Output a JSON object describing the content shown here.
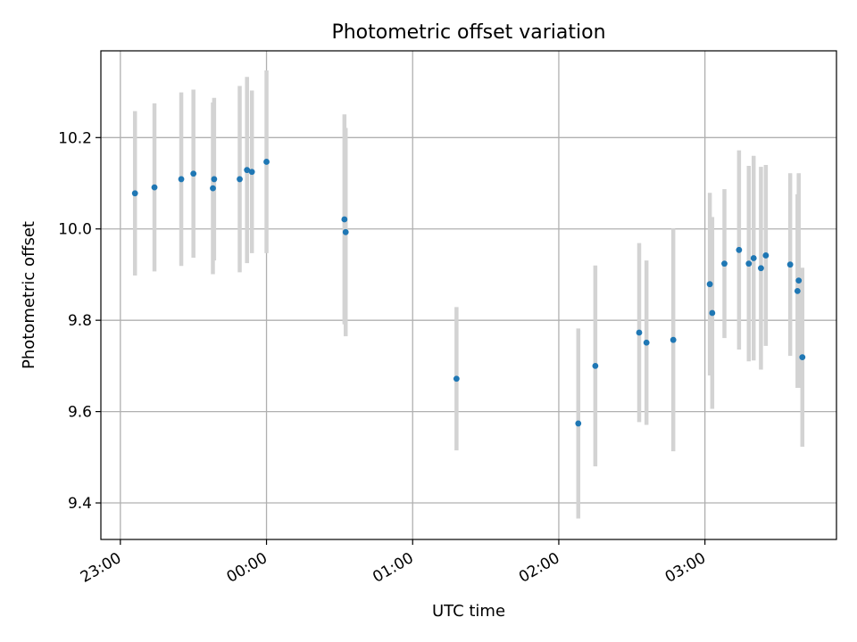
{
  "chart_data": {
    "type": "scatter",
    "title": "Photometric offset variation",
    "xlabel": "UTC time",
    "ylabel": "Photometric offset",
    "x_ticks": [
      "23:00",
      "00:00",
      "01:00",
      "02:00",
      "03:00"
    ],
    "y_ticks": [
      "9.4",
      "9.6",
      "9.8",
      "10.0",
      "10.2"
    ],
    "xlim": [
      "22:52",
      "03:54"
    ],
    "ylim": [
      9.32,
      10.39
    ],
    "grid": true,
    "colors": {
      "points": "#1f77b4",
      "errorbars": "#d3d3d3",
      "grid": "#b0b0b0"
    },
    "points": [
      {
        "x": "23:06",
        "y": 10.078,
        "err": 0.18
      },
      {
        "x": "23:14",
        "y": 10.091,
        "err": 0.184
      },
      {
        "x": "23:25",
        "y": 10.109,
        "err": 0.19
      },
      {
        "x": "23:30",
        "y": 10.121,
        "err": 0.184
      },
      {
        "x": "23:38",
        "y": 10.089,
        "err": 0.188
      },
      {
        "x": "23:38.5",
        "y": 10.109,
        "err": 0.178
      },
      {
        "x": "23:49",
        "y": 10.109,
        "err": 0.204
      },
      {
        "x": "23:52",
        "y": 10.129,
        "err": 0.204
      },
      {
        "x": "23:54",
        "y": 10.125,
        "err": 0.178
      },
      {
        "x": "00:00",
        "y": 10.147,
        "err": 0.2
      },
      {
        "x": "00:32",
        "y": 10.021,
        "err": 0.23
      },
      {
        "x": "00:32.5",
        "y": 9.993,
        "err": 0.228
      },
      {
        "x": "01:18",
        "y": 9.672,
        "err": 0.157
      },
      {
        "x": "02:08",
        "y": 9.574,
        "err": 0.208
      },
      {
        "x": "02:15",
        "y": 9.7,
        "err": 0.22
      },
      {
        "x": "02:33",
        "y": 9.773,
        "err": 0.196
      },
      {
        "x": "02:36",
        "y": 9.751,
        "err": 0.18
      },
      {
        "x": "02:47",
        "y": 9.757,
        "err": 0.244
      },
      {
        "x": "03:02",
        "y": 9.879,
        "err": 0.2
      },
      {
        "x": "03:03",
        "y": 9.816,
        "err": 0.21
      },
      {
        "x": "03:08",
        "y": 9.924,
        "err": 0.163
      },
      {
        "x": "03:14",
        "y": 9.954,
        "err": 0.218
      },
      {
        "x": "03:18",
        "y": 9.924,
        "err": 0.214
      },
      {
        "x": "03:20",
        "y": 9.936,
        "err": 0.224
      },
      {
        "x": "03:23",
        "y": 9.914,
        "err": 0.222
      },
      {
        "x": "03:25",
        "y": 9.942,
        "err": 0.198
      },
      {
        "x": "03:35",
        "y": 9.922,
        "err": 0.2
      },
      {
        "x": "03:38",
        "y": 9.864,
        "err": 0.212
      },
      {
        "x": "03:38.5",
        "y": 9.887,
        "err": 0.235
      },
      {
        "x": "03:40",
        "y": 9.719,
        "err": 0.196
      }
    ]
  }
}
